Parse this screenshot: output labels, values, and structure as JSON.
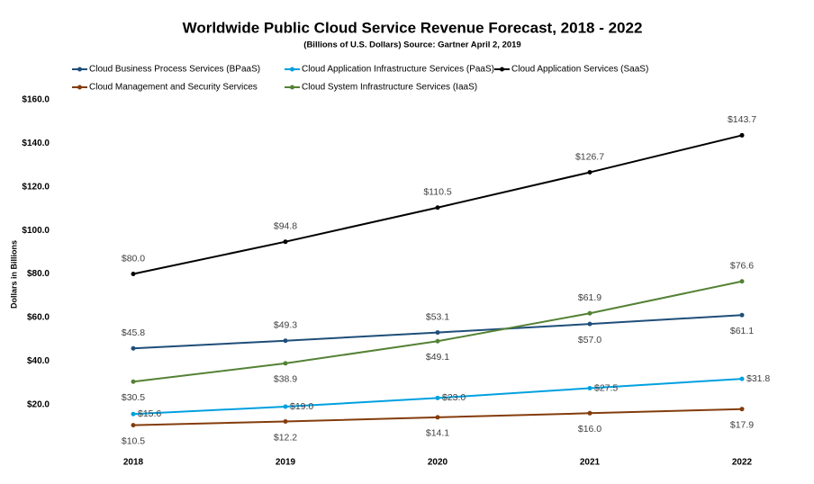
{
  "chart_data": {
    "type": "line",
    "title": "Worldwide Public Cloud Service Revenue Forecast, 2018 - 2022",
    "subtitle": "(Billions of U.S. Dollars) Source: Gartner April 2, 2019",
    "y_label": "Dollars in Billions",
    "categories": [
      "2018",
      "2019",
      "2020",
      "2021",
      "2022"
    ],
    "ylim": [
      0,
      160
    ],
    "yticks": [
      {
        "value": 20,
        "label": "$20.0"
      },
      {
        "value": 40,
        "label": "$40.0"
      },
      {
        "value": 60,
        "label": "$60.0"
      },
      {
        "value": 80,
        "label": "$80.0"
      },
      {
        "value": 100,
        "label": "$100.0"
      },
      {
        "value": 120,
        "label": "$120.0"
      },
      {
        "value": 140,
        "label": "$140.0"
      },
      {
        "value": 160,
        "label": "$160.0"
      }
    ],
    "grid": false,
    "legend": "top",
    "series": [
      {
        "name": "Cloud Business Process Services (BPaaS)",
        "color": "#1f4e79",
        "values": [
          45.8,
          49.3,
          53.1,
          57.0,
          61.1
        ],
        "value_labels": [
          "$45.8",
          "$49.3",
          "$53.1",
          "$57.0",
          "$61.1"
        ]
      },
      {
        "name": "Cloud Application Infrastructure Services (PaaS)",
        "color": "#00a0e0",
        "values": [
          15.6,
          19.0,
          23.0,
          27.5,
          31.8
        ],
        "value_labels": [
          "$15.6",
          "$19.0",
          "$23.0",
          "$27.5",
          "$31.8"
        ]
      },
      {
        "name": "Cloud Application Services (SaaS)",
        "color": "#000000",
        "values": [
          80.0,
          94.8,
          110.5,
          126.7,
          143.7
        ],
        "value_labels": [
          "$80.0",
          "$94.8",
          "$110.5",
          "$126.7",
          "$143.7"
        ]
      },
      {
        "name": "Cloud Management and Security Services",
        "color": "#843c0c",
        "values": [
          10.5,
          12.2,
          14.1,
          16.0,
          17.9
        ],
        "value_labels": [
          "$10.5",
          "$12.2",
          "$14.1",
          "$16.0",
          "$17.9"
        ]
      },
      {
        "name": "Cloud System Infrastructure Services (IaaS)",
        "color": "#548235",
        "values": [
          30.5,
          38.9,
          49.1,
          61.9,
          76.6
        ],
        "value_labels": [
          "$30.5",
          "$38.9",
          "$49.1",
          "$61.9",
          "$76.6"
        ]
      }
    ]
  }
}
